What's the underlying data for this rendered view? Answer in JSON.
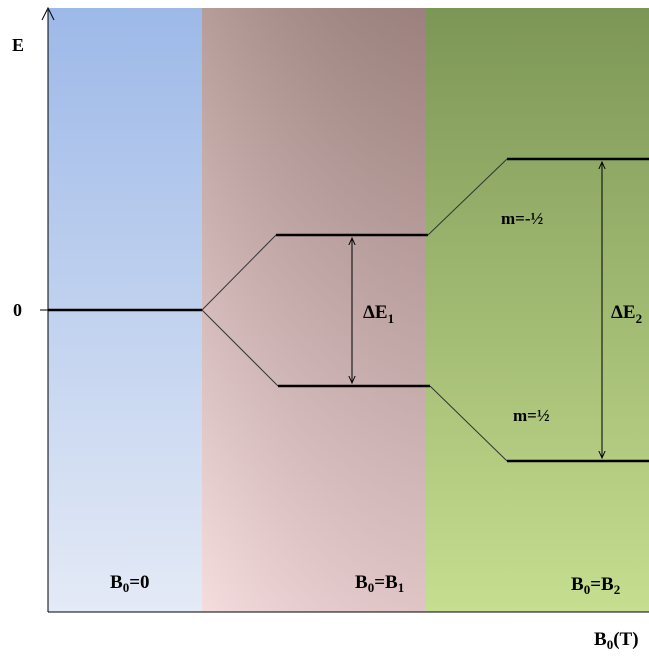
{
  "axes": {
    "y_label": "E",
    "zero_label": "0",
    "x_label_main": "B",
    "x_label_sub": "0",
    "x_label_unit": "(T)"
  },
  "regions": [
    {
      "main": "B",
      "sub": "0",
      "rest": "=0",
      "rest_sub": "",
      "color_top": "#9db9e8",
      "color_bottom": "#e4eaf6"
    },
    {
      "main": "B",
      "sub": "0",
      "rest": "=B",
      "rest_sub": "1",
      "color_top": "#a98c88",
      "color_bottom": "#f3d6d8"
    },
    {
      "main": "B",
      "sub": "0",
      "rest": "=B",
      "rest_sub": "2",
      "color_top": "#7c9656",
      "color_bottom": "#c6de8f"
    }
  ],
  "gaps": [
    {
      "main": "ΔE",
      "sub": "1"
    },
    {
      "main": "ΔE",
      "sub": "2"
    }
  ],
  "levels": {
    "upper": "m=-½",
    "lower": "m=½"
  }
}
